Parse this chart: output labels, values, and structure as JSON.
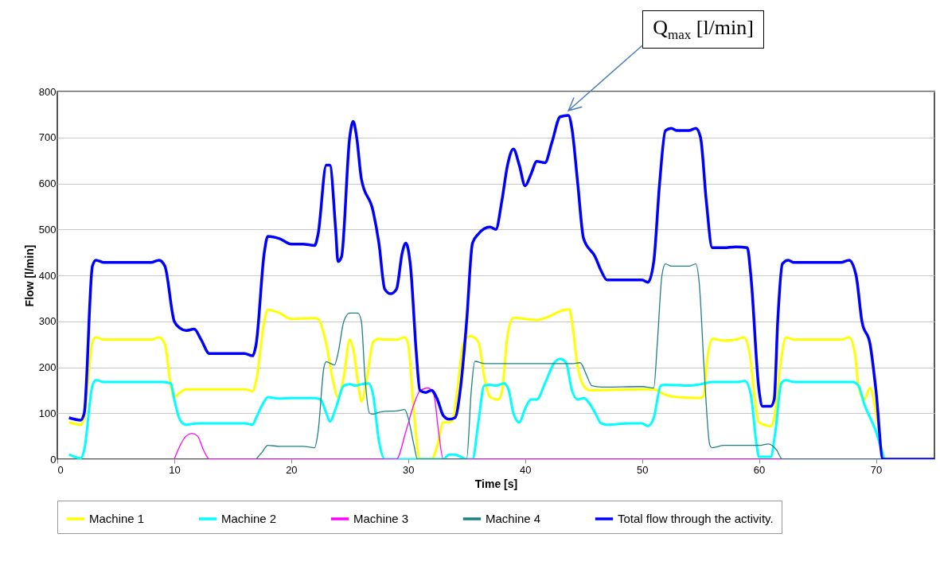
{
  "chart_data": {
    "type": "line",
    "xlabel": "Time [s]",
    "ylabel": "Flow [l/min]",
    "xlim": [
      0,
      75
    ],
    "xticks": [
      0,
      10,
      20,
      30,
      40,
      50,
      60,
      70
    ],
    "ylim": [
      0,
      800
    ],
    "yticks": [
      0,
      100,
      200,
      300,
      400,
      500,
      600,
      700,
      800
    ],
    "grid": "y",
    "legend": "bottom",
    "annotations": [
      {
        "text": "Q$_{max}$ [l/min]",
        "x": 43.5,
        "y": 748
      }
    ],
    "series": [
      {
        "name": "Machine 1",
        "color": "#ffff00",
        "x": [
          1,
          2,
          2.3,
          3,
          3.3,
          4,
          8,
          8.7,
          9.2,
          9.7,
          10,
          10.5,
          11,
          16,
          16.7,
          17,
          17.7,
          18,
          19,
          20,
          22,
          22.3,
          23,
          23.5,
          24,
          24.5,
          25,
          25.3,
          25.8,
          26,
          26.5,
          27,
          27.5,
          28,
          29,
          29.7,
          30,
          30.5,
          31,
          32,
          32.5,
          33,
          33.5,
          33.8,
          34.2,
          34.7,
          35.3,
          36,
          36.5,
          37,
          37.7,
          38,
          38.5,
          39,
          40,
          41,
          42,
          43,
          43.8,
          44,
          44.5,
          45,
          45.5,
          50,
          51,
          52,
          53,
          55,
          55.3,
          55.5,
          56,
          57,
          58,
          58.7,
          59.2,
          59.7,
          60,
          61,
          61.3,
          61.8,
          62.3,
          63,
          67,
          67.7,
          68.2,
          68.5,
          69,
          69.5,
          70,
          70.6
        ],
        "values": [
          80,
          75,
          90,
          255,
          265,
          260,
          260,
          265,
          250,
          160,
          135,
          145,
          152,
          152,
          148,
          170,
          300,
          325,
          318,
          305,
          307,
          305,
          250,
          180,
          135,
          180,
          260,
          240,
          150,
          125,
          180,
          255,
          262,
          260,
          260,
          265,
          250,
          100,
          0,
          0,
          30,
          80,
          80,
          85,
          150,
          250,
          268,
          255,
          180,
          135,
          130,
          145,
          270,
          308,
          305,
          303,
          310,
          322,
          326,
          300,
          200,
          160,
          150,
          152,
          152,
          140,
          135,
          133,
          140,
          200,
          262,
          258,
          260,
          265,
          230,
          120,
          80,
          72,
          90,
          200,
          265,
          260,
          260,
          265,
          230,
          160,
          130,
          155,
          100,
          0
        ]
      },
      {
        "name": "Machine 2",
        "color": "#00ffff",
        "x": [
          1,
          2,
          2.3,
          3,
          3.3,
          4,
          9,
          9.7,
          10,
          10.5,
          11,
          12,
          16,
          16.7,
          17,
          17.8,
          18,
          19,
          20,
          22,
          22.5,
          23,
          23.3,
          23.8,
          24.5,
          25,
          25.5,
          26,
          26.6,
          27,
          27.5,
          28,
          33,
          33.5,
          34,
          34.5,
          35,
          35.5,
          36,
          36.5,
          37,
          37.5,
          38.2,
          38.6,
          39,
          39.5,
          40,
          40.5,
          41,
          41.7,
          42.5,
          43,
          43.5,
          44,
          44.5,
          45,
          46,
          46.5,
          47,
          49,
          50,
          50.5,
          51,
          51.6,
          52,
          54,
          55,
          56,
          58,
          58.8,
          59.3,
          59.8,
          60,
          61,
          61.4,
          61.9,
          62.3,
          63,
          67,
          68,
          68.5,
          69,
          70,
          70.7
        ],
        "values": [
          10,
          2,
          20,
          160,
          172,
          168,
          168,
          165,
          130,
          85,
          75,
          78,
          78,
          75,
          90,
          130,
          135,
          132,
          133,
          133,
          130,
          100,
          82,
          110,
          160,
          163,
          160,
          163,
          165,
          140,
          40,
          0,
          0,
          10,
          10,
          5,
          0,
          0,
          80,
          160,
          162,
          160,
          165,
          150,
          100,
          80,
          110,
          130,
          130,
          165,
          210,
          218,
          210,
          150,
          130,
          133,
          100,
          78,
          75,
          78,
          78,
          72,
          90,
          160,
          162,
          160,
          163,
          168,
          168,
          170,
          140,
          30,
          5,
          5,
          60,
          165,
          172,
          168,
          168,
          168,
          160,
          120,
          60,
          0
        ]
      },
      {
        "name": "Machine 3",
        "color": "#ff00ff",
        "x": [
          10,
          10.5,
          11,
          11.5,
          12,
          12.5,
          13,
          29,
          29.8,
          30.5,
          31,
          31.7,
          32.2,
          32.6,
          33,
          71
        ],
        "values": [
          0,
          30,
          50,
          56,
          50,
          20,
          0,
          0,
          60,
          120,
          148,
          155,
          140,
          60,
          0,
          0
        ]
      },
      {
        "name": "Machine 4",
        "color": "#1f8080",
        "x": [
          17,
          17.5,
          18,
          19,
          21,
          22,
          22.3,
          22.8,
          23,
          23.7,
          24,
          24.5,
          25,
          25.7,
          26,
          26.3,
          26.7,
          27,
          27.5,
          28,
          29,
          29.7,
          30,
          30.5,
          30.8,
          35,
          35.4,
          35.7,
          36.5,
          40,
          44,
          44.7,
          45.3,
          45.7,
          46.5,
          50,
          51,
          51.3,
          51.7,
          52,
          52.5,
          54,
          54.6,
          54.9,
          55.3,
          55.8,
          56,
          57,
          60,
          60.8,
          61.5,
          62,
          71
        ],
        "values": [
          0,
          15,
          30,
          28,
          28,
          25,
          60,
          200,
          212,
          205,
          230,
          300,
          318,
          318,
          300,
          180,
          100,
          98,
          102,
          104,
          105,
          108,
          90,
          30,
          0,
          0,
          150,
          213,
          208,
          208,
          208,
          210,
          180,
          160,
          157,
          158,
          155,
          250,
          400,
          425,
          420,
          420,
          425,
          380,
          200,
          30,
          25,
          30,
          30,
          33,
          20,
          0,
          0
        ]
      },
      {
        "name": "Total flow through the activity.",
        "color": "#0000ff",
        "x": [
          1,
          2,
          2.3,
          3,
          3.3,
          4,
          8,
          8.7,
          9.2,
          10,
          10.5,
          11,
          11.7,
          12.3,
          13,
          14,
          16,
          16.7,
          17,
          17.7,
          18,
          19,
          20,
          21,
          22,
          22.3,
          23,
          23.3,
          23.8,
          24,
          24.3,
          25,
          25.3,
          25.6,
          26,
          27,
          27.5,
          28,
          28.5,
          29,
          29.5,
          29.8,
          30.2,
          30.7,
          31,
          31.5,
          32,
          32.5,
          33,
          33.5,
          34,
          34.5,
          35,
          35.5,
          36,
          37,
          37.5,
          38,
          38.5,
          39,
          39.5,
          40,
          40.5,
          41,
          41.7,
          42.3,
          43,
          43.7,
          44,
          44.5,
          45,
          46,
          46.5,
          47,
          48,
          50,
          50.5,
          51,
          51.5,
          52,
          52.5,
          53,
          54,
          54.6,
          55,
          55.5,
          56,
          57,
          58,
          59,
          59.3,
          60,
          60.3,
          61,
          61.3,
          61.6,
          62,
          62.5,
          63,
          67,
          67.7,
          68.3,
          68.8,
          69.5,
          70,
          70.6,
          72,
          75
        ],
        "values": [
          90,
          85,
          100,
          420,
          433,
          428,
          428,
          433,
          420,
          300,
          285,
          280,
          283,
          260,
          230,
          230,
          230,
          225,
          250,
          450,
          485,
          480,
          468,
          468,
          465,
          490,
          640,
          640,
          500,
          430,
          440,
          700,
          735,
          700,
          610,
          540,
          470,
          370,
          360,
          370,
          450,
          470,
          420,
          230,
          150,
          145,
          150,
          130,
          95,
          87,
          90,
          160,
          300,
          470,
          490,
          505,
          500,
          560,
          640,
          675,
          640,
          595,
          620,
          648,
          645,
          690,
          745,
          748,
          720,
          600,
          480,
          440,
          410,
          390,
          390,
          390,
          385,
          430,
          600,
          715,
          720,
          715,
          715,
          720,
          700,
          560,
          460,
          460,
          462,
          460,
          400,
          150,
          115,
          115,
          130,
          300,
          425,
          433,
          428,
          428,
          433,
          400,
          300,
          250,
          150,
          0,
          0,
          0
        ]
      }
    ]
  }
}
